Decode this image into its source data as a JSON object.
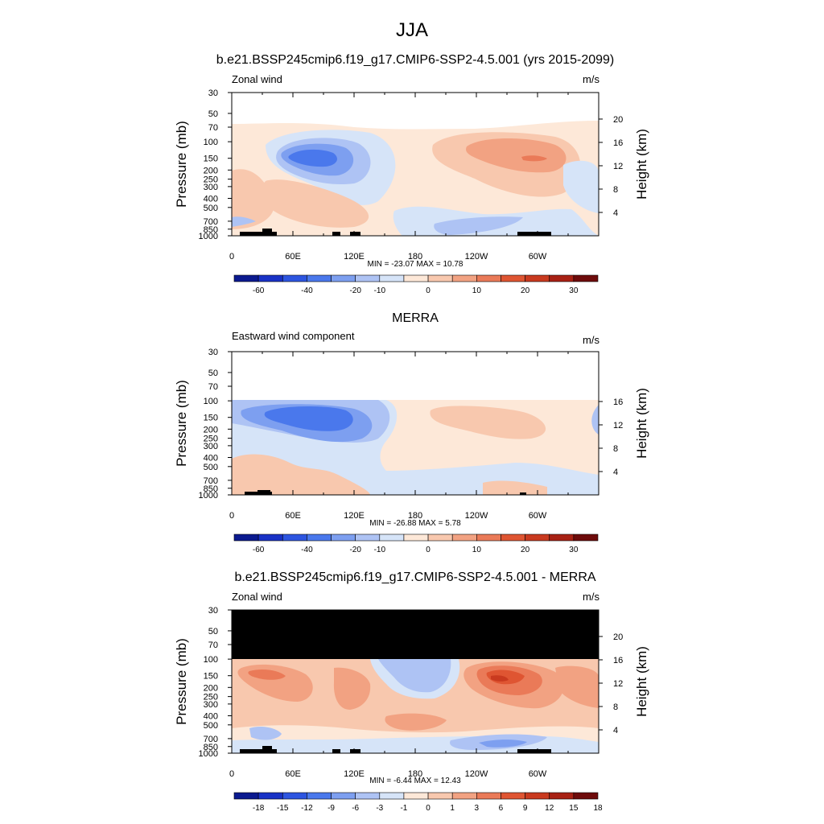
{
  "figure": {
    "title": "JJA"
  },
  "colors": {
    "wind_ramp": [
      "#0b1a8f",
      "#1932c6",
      "#2d55e0",
      "#4a78ec",
      "#7d9ff0",
      "#aec3f4",
      "#d6e4f8",
      "#fde8d8",
      "#f8c8ae",
      "#f2a282",
      "#ea7a58",
      "#df5532",
      "#c93a1f",
      "#a82114",
      "#6e0b0b"
    ],
    "diff_ramp": [
      "#0b1a8f",
      "#1932c6",
      "#2d55e0",
      "#4a78ec",
      "#7d9ff0",
      "#aec3f4",
      "#d6e4f8",
      "#fde8d8",
      "#f8c8ae",
      "#f2a282",
      "#ea7a58",
      "#df5532",
      "#c93a1f",
      "#a82114",
      "#6e0b0b"
    ],
    "terrain": "#000000",
    "missing": "#000000"
  },
  "chart_data": [
    {
      "type": "heatmap",
      "title": "b.e21.BSSP245cmip6.f19_g17.CMIP6-SSP2-4.5.001 (yrs 2015-2099)",
      "left_label": "Zonal wind",
      "units": "m/s",
      "ylabel": "Pressure (mb)",
      "ylabel_right": "Height (km)",
      "x_ticks": [
        "0",
        "60E",
        "120E",
        "180",
        "120W",
        "60W"
      ],
      "y_ticks": [
        "30",
        "50",
        "70",
        "100",
        "150",
        "200",
        "250",
        "300",
        "400",
        "500",
        "700",
        "850",
        "1000"
      ],
      "height_ticks": [
        "20",
        "16",
        "12",
        "8",
        "4"
      ],
      "stats": "MIN = -23.07  MAX =  10.78",
      "colorbar_labels": [
        "-60",
        "-40",
        "-20",
        "-10",
        "0",
        "10",
        "20",
        "30"
      ],
      "min": -23.07,
      "max": 10.78
    },
    {
      "type": "heatmap",
      "title": "MERRA",
      "left_label": "Eastward wind component",
      "units": "m/s",
      "ylabel": "Pressure (mb)",
      "ylabel_right": "Height (km)",
      "x_ticks": [
        "0",
        "60E",
        "120E",
        "180",
        "120W",
        "60W"
      ],
      "y_ticks": [
        "30",
        "50",
        "70",
        "100",
        "150",
        "200",
        "250",
        "300",
        "400",
        "500",
        "700",
        "850",
        "1000"
      ],
      "height_ticks": [
        "16",
        "12",
        "8",
        "4"
      ],
      "stats": "MIN = -26.88  MAX =   5.78",
      "colorbar_labels": [
        "-60",
        "-40",
        "-20",
        "-10",
        "0",
        "10",
        "20",
        "30"
      ],
      "min": -26.88,
      "max": 5.78
    },
    {
      "type": "heatmap",
      "title": "b.e21.BSSP245cmip6.f19_g17.CMIP6-SSP2-4.5.001 - MERRA",
      "left_label": "Zonal wind",
      "units": "m/s",
      "ylabel": "Pressure (mb)",
      "ylabel_right": "Height (km)",
      "x_ticks": [
        "0",
        "60E",
        "120E",
        "180",
        "120W",
        "60W"
      ],
      "y_ticks": [
        "30",
        "50",
        "70",
        "100",
        "150",
        "200",
        "250",
        "300",
        "400",
        "500",
        "700",
        "850",
        "1000"
      ],
      "height_ticks": [
        "20",
        "16",
        "12",
        "8",
        "4"
      ],
      "stats": "MIN = -6.44  MAX = 12.43",
      "colorbar_labels": [
        "-18",
        "-15",
        "-12",
        "-9",
        "-6",
        "-3",
        "-1",
        "0",
        "1",
        "3",
        "6",
        "9",
        "12",
        "15",
        "18"
      ],
      "min": -6.44,
      "max": 12.43
    }
  ]
}
